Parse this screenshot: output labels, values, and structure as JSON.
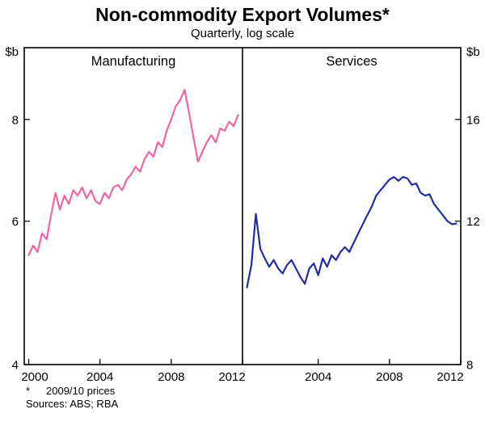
{
  "title": "Non-commodity Export Volumes*",
  "subtitle": "Quarterly, log scale",
  "footnote": {
    "marker": "*",
    "text": "2009/10 prices"
  },
  "sources": "Sources: ABS; RBA",
  "chart_data": {
    "type": "line",
    "log_scale": true,
    "frame_color": "#000000",
    "panels": [
      {
        "label": "Manufacturing",
        "unit": "$b",
        "axis_side": "left",
        "color": "#ee64a4",
        "yticks": [
          4,
          6,
          8
        ],
        "ylim": [
          4,
          9.8
        ],
        "xticks": [
          2000,
          2004,
          2008,
          2012
        ],
        "xlim": [
          1999.75,
          2012
        ],
        "x_start": 2000.0,
        "x_step": 0.25,
        "values": [
          5.45,
          5.6,
          5.5,
          5.8,
          5.7,
          6.1,
          6.5,
          6.2,
          6.45,
          6.3,
          6.55,
          6.45,
          6.6,
          6.4,
          6.55,
          6.35,
          6.3,
          6.5,
          6.4,
          6.6,
          6.65,
          6.55,
          6.75,
          6.85,
          7.0,
          6.9,
          7.15,
          7.3,
          7.2,
          7.5,
          7.4,
          7.75,
          8.0,
          8.3,
          8.45,
          8.7,
          8.15,
          7.6,
          7.1,
          7.3,
          7.5,
          7.65,
          7.5,
          7.8,
          7.75,
          7.95,
          7.85,
          8.1
        ]
      },
      {
        "label": "Services",
        "unit": "$b",
        "axis_side": "right",
        "color": "#222ea0",
        "yticks": [
          8,
          12,
          16
        ],
        "ylim": [
          8,
          19.6
        ],
        "xticks": [
          2004,
          2008,
          2012
        ],
        "xlim": [
          1999.75,
          2012
        ],
        "x_start": 2000.0,
        "x_step": 0.25,
        "values": [
          9.95,
          10.6,
          12.25,
          11.1,
          10.8,
          10.55,
          10.75,
          10.5,
          10.35,
          10.6,
          10.75,
          10.5,
          10.25,
          10.05,
          10.5,
          10.65,
          10.3,
          10.8,
          10.55,
          10.9,
          10.75,
          11.0,
          11.15,
          11.0,
          11.3,
          11.6,
          11.9,
          12.2,
          12.5,
          12.9,
          13.1,
          13.3,
          13.5,
          13.6,
          13.45,
          13.6,
          13.55,
          13.3,
          13.35,
          13.0,
          12.9,
          12.95,
          12.6,
          12.4,
          12.2,
          12.0,
          11.9,
          11.92
        ]
      }
    ]
  }
}
